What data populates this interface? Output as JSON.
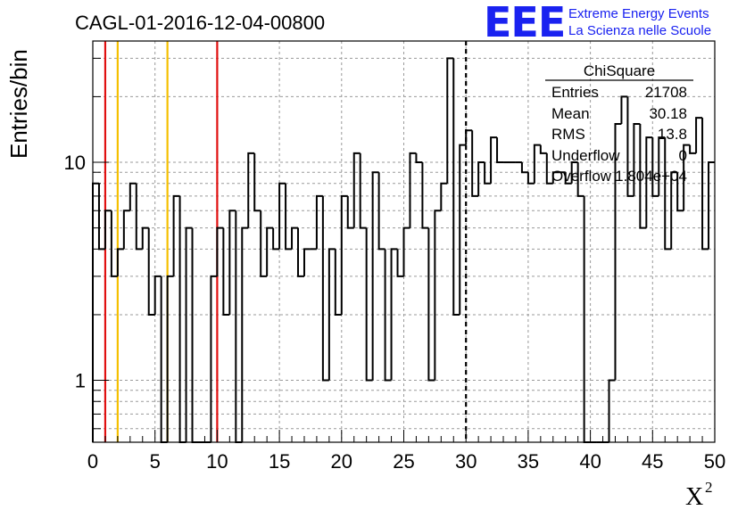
{
  "chart_data": {
    "type": "histogram",
    "title": "CAGL-01-2016-12-04-00800",
    "ylabel": "Entries/bin",
    "xlabel_base": "X",
    "xlabel_sup": "2",
    "xlim": [
      0,
      50
    ],
    "ylim": [
      0.52,
      36
    ],
    "yscale": "log",
    "grid": true,
    "bin_width": 0.5,
    "x_ticks": [
      0,
      5,
      10,
      15,
      20,
      25,
      30,
      35,
      40,
      45,
      50
    ],
    "y_ticks": [
      1,
      10
    ],
    "values": [
      8,
      4,
      6,
      3,
      4,
      6,
      8,
      4,
      5,
      2,
      3,
      0,
      3,
      7,
      0,
      5,
      0,
      0,
      0,
      3,
      5,
      2,
      6,
      0,
      5,
      11,
      6,
      3,
      5,
      4,
      8,
      4,
      5,
      3,
      4,
      4,
      7,
      1,
      4,
      2,
      7,
      5,
      11,
      5,
      1,
      9,
      4,
      1,
      4,
      3,
      5,
      11,
      10,
      5,
      1,
      6,
      8,
      30,
      2,
      12,
      14,
      7,
      10,
      8,
      13,
      10,
      10,
      10,
      10,
      9,
      8,
      12,
      11,
      8,
      9,
      9,
      8,
      10,
      7,
      0,
      0,
      0,
      0,
      1,
      15,
      20,
      7,
      15,
      5,
      13,
      7,
      13,
      4,
      9,
      6,
      12,
      11,
      16,
      4,
      10
    ],
    "vertical_lines": [
      {
        "x": 1,
        "color": "#e01010",
        "style": "solid"
      },
      {
        "x": 2,
        "color": "#f5c000",
        "style": "solid"
      },
      {
        "x": 6,
        "color": "#f5c000",
        "style": "solid"
      },
      {
        "x": 10,
        "color": "#e01010",
        "style": "solid"
      },
      {
        "x": 30,
        "color": "#000000",
        "style": "dashed"
      }
    ]
  },
  "stats_box": {
    "title": "ChiSquare",
    "rows": [
      {
        "label": "Entries",
        "value": "21708"
      },
      {
        "label": "Mean",
        "value": "30.18"
      },
      {
        "label": "RMS",
        "value": "13.8"
      },
      {
        "label": "Underflow",
        "value": "0"
      },
      {
        "label": "Overflow",
        "value": "1.804e+04"
      }
    ]
  },
  "logo": {
    "text": "EEE",
    "line1": "Extreme Energy Events",
    "line2": "La Scienza nelle Scuole"
  }
}
